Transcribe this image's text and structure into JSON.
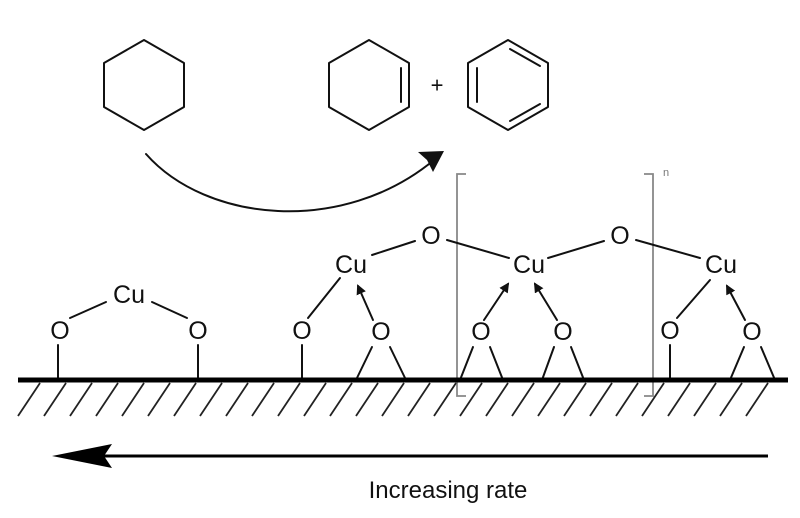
{
  "reaction": {
    "plus": "+"
  },
  "bracket_subscript": "n",
  "atoms": {
    "cu": "Cu",
    "o": "O"
  },
  "caption": "Increasing rate"
}
